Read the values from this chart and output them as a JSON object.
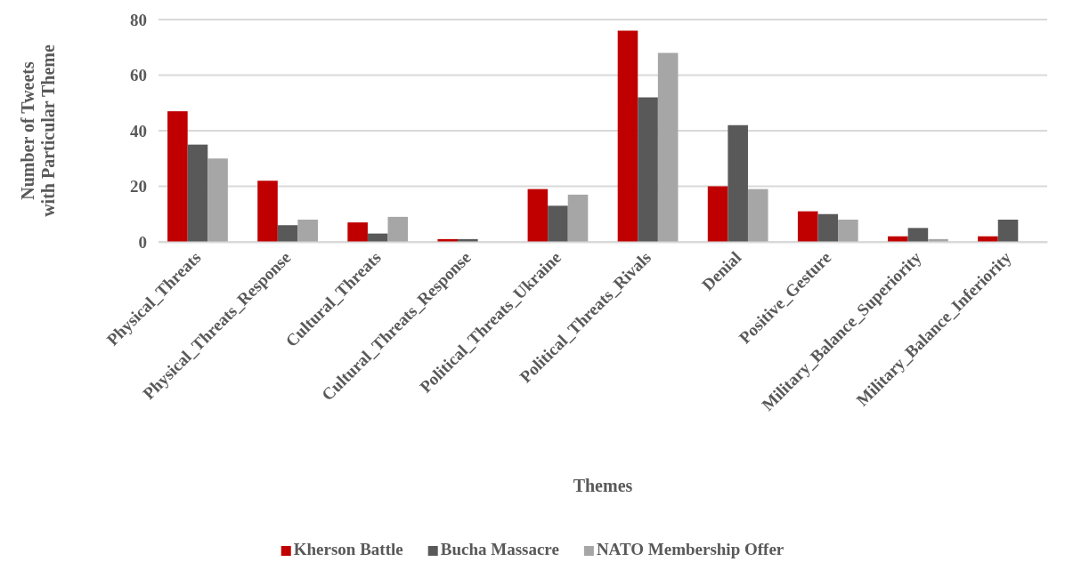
{
  "chart_data": {
    "type": "bar",
    "xlabel": "Themes",
    "ylabel": "Number of Tweets with Particular Theme",
    "categories": [
      "Physical_Threats",
      "Physical_Threats_Response",
      "Cultural_Threats",
      "Cultural_Threats_Response",
      "Political_Threats_Ukraine",
      "Political_Threats_Rivals",
      "Denial",
      "Positive_Gesture",
      "Military_Balance_Superiority",
      "Military_Balance_Inferiority"
    ],
    "series": [
      {
        "name": "Kherson Battle",
        "color": "#c00000",
        "values": [
          47,
          22,
          7,
          1,
          19,
          76,
          20,
          11,
          2,
          2
        ]
      },
      {
        "name": "Bucha Massacre",
        "color": "#595959",
        "values": [
          35,
          6,
          3,
          1,
          13,
          52,
          42,
          10,
          5,
          8
        ]
      },
      {
        "name": "NATO Membership Offer",
        "color": "#a6a6a6",
        "values": [
          30,
          8,
          9,
          0,
          17,
          68,
          19,
          8,
          1,
          0
        ]
      }
    ],
    "ylim": [
      0,
      80
    ],
    "yticks": [
      0,
      20,
      40,
      60,
      80
    ],
    "grid": "y",
    "legend": "bottom"
  }
}
